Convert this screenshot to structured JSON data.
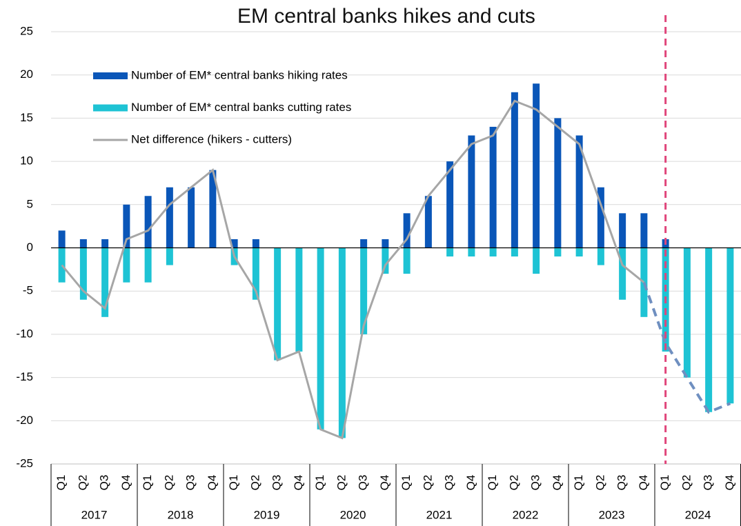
{
  "chart_data": {
    "type": "bar",
    "title": "EM central banks hikes and cuts",
    "categories": [
      "Q1",
      "Q2",
      "Q3",
      "Q4",
      "Q1",
      "Q2",
      "Q3",
      "Q4",
      "Q1",
      "Q2",
      "Q3",
      "Q4",
      "Q1",
      "Q2",
      "Q3",
      "Q4",
      "Q1",
      "Q2",
      "Q3",
      "Q4",
      "Q1",
      "Q2",
      "Q3",
      "Q4",
      "Q1",
      "Q2",
      "Q3",
      "Q4",
      "Q1",
      "Q2",
      "Q3",
      "Q4"
    ],
    "groups": [
      "2017",
      "2018",
      "2019",
      "2020",
      "2021",
      "2022",
      "2023",
      "2024"
    ],
    "series": [
      {
        "name": "Number of EM* central banks hiking rates",
        "kind": "bar",
        "color": "#0a56b8",
        "values": [
          2,
          1,
          1,
          5,
          6,
          7,
          7,
          9,
          1,
          1,
          0,
          0,
          0,
          0,
          1,
          1,
          4,
          6,
          10,
          13,
          14,
          18,
          19,
          15,
          13,
          7,
          4,
          4,
          1,
          0,
          0,
          0
        ]
      },
      {
        "name": "Number of EM* central banks cutting rates",
        "kind": "bar",
        "color": "#1ec3d4",
        "values": [
          -4,
          -6,
          -8,
          -4,
          -4,
          -2,
          0,
          0,
          -2,
          -6,
          -13,
          -12,
          -21,
          -22,
          -10,
          -3,
          -3,
          0,
          -1,
          -1,
          -1,
          -1,
          -3,
          -1,
          -1,
          -2,
          -6,
          -8,
          -12,
          -15,
          -19,
          -18
        ]
      },
      {
        "name": "Net difference (hikers - cutters)",
        "kind": "line",
        "color": "#a6a6a6",
        "forecast_color": "#6f8fc0",
        "values": [
          -2,
          -5,
          -7,
          1,
          2,
          5,
          7,
          9,
          -1,
          -5,
          -13,
          -12,
          -21,
          -22,
          -9,
          -2,
          1,
          6,
          9,
          12,
          13,
          17,
          16,
          14,
          12,
          5,
          -2,
          -4,
          -11,
          -15,
          -19,
          -18
        ]
      }
    ],
    "forecast": {
      "group": "2024",
      "color": "#e0457b"
    },
    "ylim": [
      -25,
      25
    ],
    "yticks": [
      -25,
      -20,
      -15,
      -10,
      -5,
      0,
      5,
      10,
      15,
      20,
      25
    ],
    "grid": true
  }
}
